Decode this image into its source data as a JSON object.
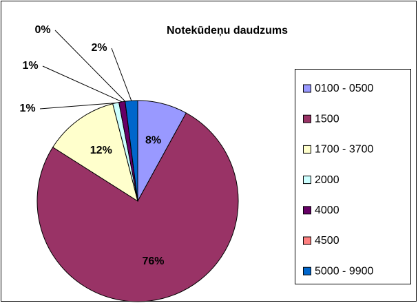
{
  "chart_data": {
    "type": "pie",
    "title": "Notekūdeņu daudzums",
    "categories": [
      "0100 - 0500",
      "1500",
      "1700 - 3700",
      "2000",
      "4000",
      "4500",
      "5000 - 9900"
    ],
    "values": [
      8,
      76,
      12,
      1,
      1,
      0,
      2
    ],
    "value_labels": [
      "8%",
      "76%",
      "12%",
      "1%",
      "1%",
      "0%",
      "2%"
    ],
    "colors": [
      "#9999ff",
      "#993366",
      "#ffffcc",
      "#ccffff",
      "#660066",
      "#ff8080",
      "#0066cc"
    ],
    "legend": "right"
  }
}
